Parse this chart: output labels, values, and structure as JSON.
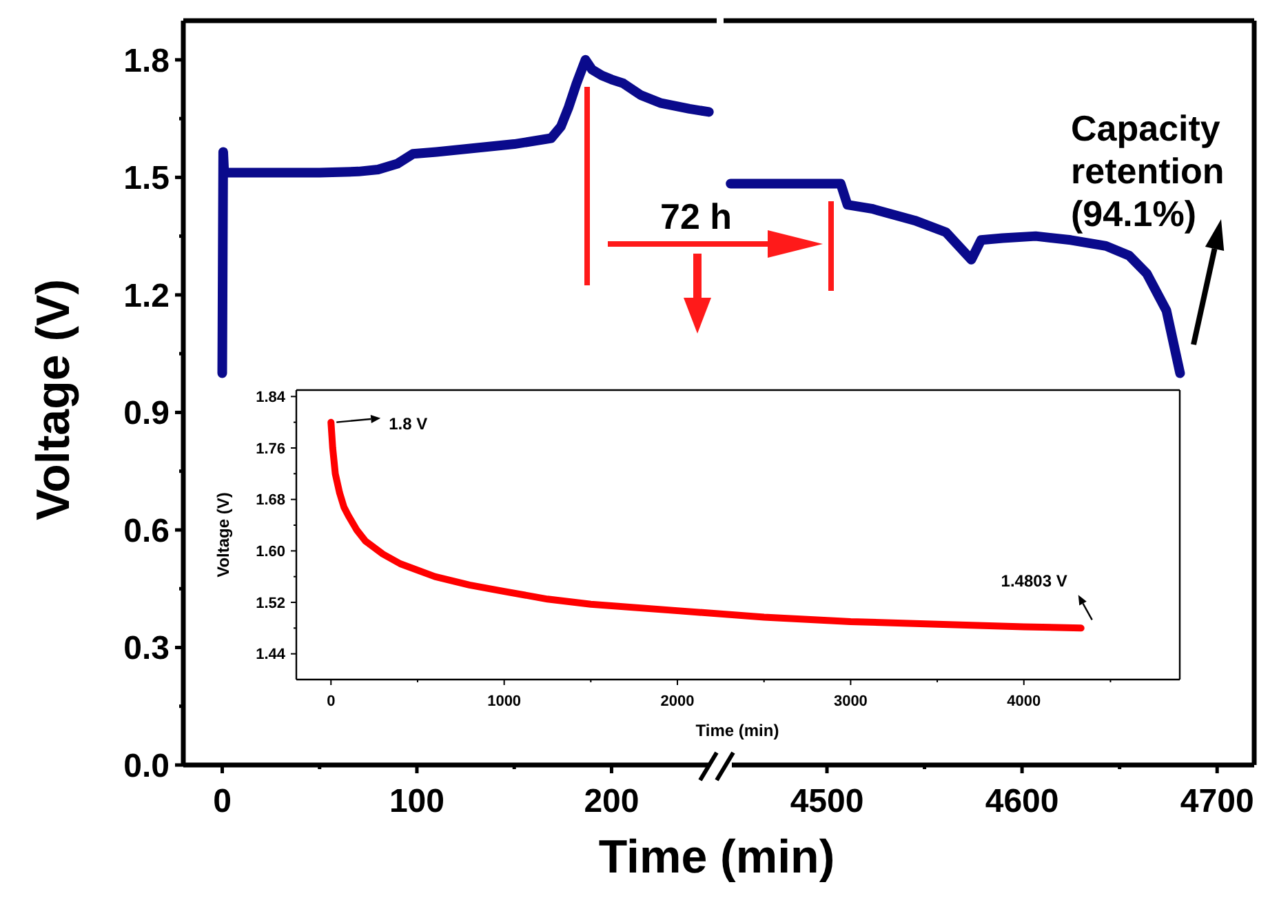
{
  "chart_data": [
    {
      "type": "line",
      "xlabel": "Time (min)",
      "ylabel": "Voltage (V)",
      "annotations": [
        "72 h"
      ],
      "x": [
        0,
        0.5,
        1,
        2,
        10,
        30,
        50,
        70,
        80,
        90,
        98,
        110,
        130,
        150,
        169,
        174,
        178,
        182,
        186.6,
        190,
        195,
        200,
        206,
        215,
        225,
        240,
        250
      ],
      "series": [
        {
          "color": "#0a0a8c",
          "values": [
            1.0,
            1.565,
            1.512,
            1.512,
            1.512,
            1.512,
            1.512,
            1.515,
            1.52,
            1.535,
            1.56,
            1.565,
            1.575,
            1.585,
            1.6,
            1.63,
            1.68,
            1.74,
            1.8,
            1.775,
            1.76,
            1.75,
            1.74,
            1.71,
            1.69,
            1.675,
            1.667
          ]
        }
      ],
      "xlim": [
        -20,
        254
      ],
      "xticks": [
        0,
        {
          "value": 50,
          "label": null
        },
        100,
        {
          "value": 150,
          "label": null
        },
        200
      ],
      "ylim": [
        0,
        1.9
      ],
      "yticks": [
        {
          "value": 0,
          "label": "0.0"
        },
        {
          "value": 0.15,
          "label": null
        },
        0.3,
        {
          "value": 0.45,
          "label": null
        },
        0.6,
        {
          "value": 0.75,
          "label": null
        },
        0.9,
        {
          "value": 1.05,
          "label": null
        },
        1.2,
        {
          "value": 1.35,
          "label": null
        },
        1.5,
        {
          "value": 1.65,
          "label": null
        },
        1.8
      ],
      "grid": false,
      "line_style": "solid",
      "marker": "none"
    },
    {
      "type": "line",
      "annotations": [
        "Capacity retention (94.1%)"
      ],
      "x": [
        4450.6,
        4480,
        4507,
        4510.5,
        4523,
        4545,
        4561,
        4574,
        4579,
        4590,
        4607,
        4625,
        4643,
        4655,
        4664,
        4674,
        4681
      ],
      "series": [
        {
          "color": "#0a0a8c",
          "values": [
            1.484,
            1.484,
            1.484,
            1.43,
            1.42,
            1.39,
            1.36,
            1.29,
            1.34,
            1.345,
            1.35,
            1.34,
            1.325,
            1.3,
            1.254,
            1.16,
            1.0
          ]
        }
      ],
      "xlim": [
        4447,
        4719
      ],
      "xticks": [
        4500,
        {
          "value": 4550,
          "label": null
        },
        4600,
        {
          "value": 4650,
          "label": null
        },
        4700
      ],
      "ylim": [
        0,
        1.9
      ],
      "tick_labels": "x",
      "grid": false,
      "line_style": "solid",
      "marker": "none"
    },
    {
      "type": "line",
      "xlabel": "Time (min)",
      "ylabel": "Voltage (V)",
      "annotations": [
        {
          "text": "1.8 V",
          "x": 0,
          "y": 1.8
        },
        {
          "text": "1.4803 V",
          "x": 4330,
          "y": 1.48
        }
      ],
      "x": [
        0,
        10,
        25,
        50,
        75,
        100,
        150,
        200,
        300,
        400,
        600,
        800,
        1000,
        1250,
        1500,
        2000,
        2500,
        3000,
        3500,
        4000,
        4330
      ],
      "series": [
        {
          "color": "#ff0000",
          "values": [
            1.8,
            1.76,
            1.72,
            1.69,
            1.668,
            1.655,
            1.632,
            1.615,
            1.595,
            1.58,
            1.56,
            1.547,
            1.537,
            1.525,
            1.517,
            1.507,
            1.497,
            1.49,
            1.486,
            1.482,
            1.48
          ]
        }
      ],
      "xlim": [
        -200,
        4900
      ],
      "xticks": [
        0,
        {
          "value": 500,
          "label": null
        },
        1000,
        {
          "value": 1500,
          "label": null
        },
        2000,
        {
          "value": 2500,
          "label": null
        },
        3000,
        {
          "value": 3500,
          "label": null
        },
        4000,
        {
          "value": 4500,
          "label": null
        }
      ],
      "ylim": [
        1.4,
        1.85
      ],
      "yticks": [
        1.44,
        {
          "value": 1.48,
          "label": null
        },
        1.52,
        {
          "value": 1.56,
          "label": null
        },
        {
          "value": 1.6,
          "label": "1.60"
        },
        {
          "value": 1.64,
          "label": null
        },
        1.68,
        {
          "value": 1.72,
          "label": null
        },
        1.76,
        {
          "value": 1.8,
          "label": null
        },
        1.84
      ],
      "grid": false,
      "line_style": "solid",
      "marker": "none"
    }
  ]
}
